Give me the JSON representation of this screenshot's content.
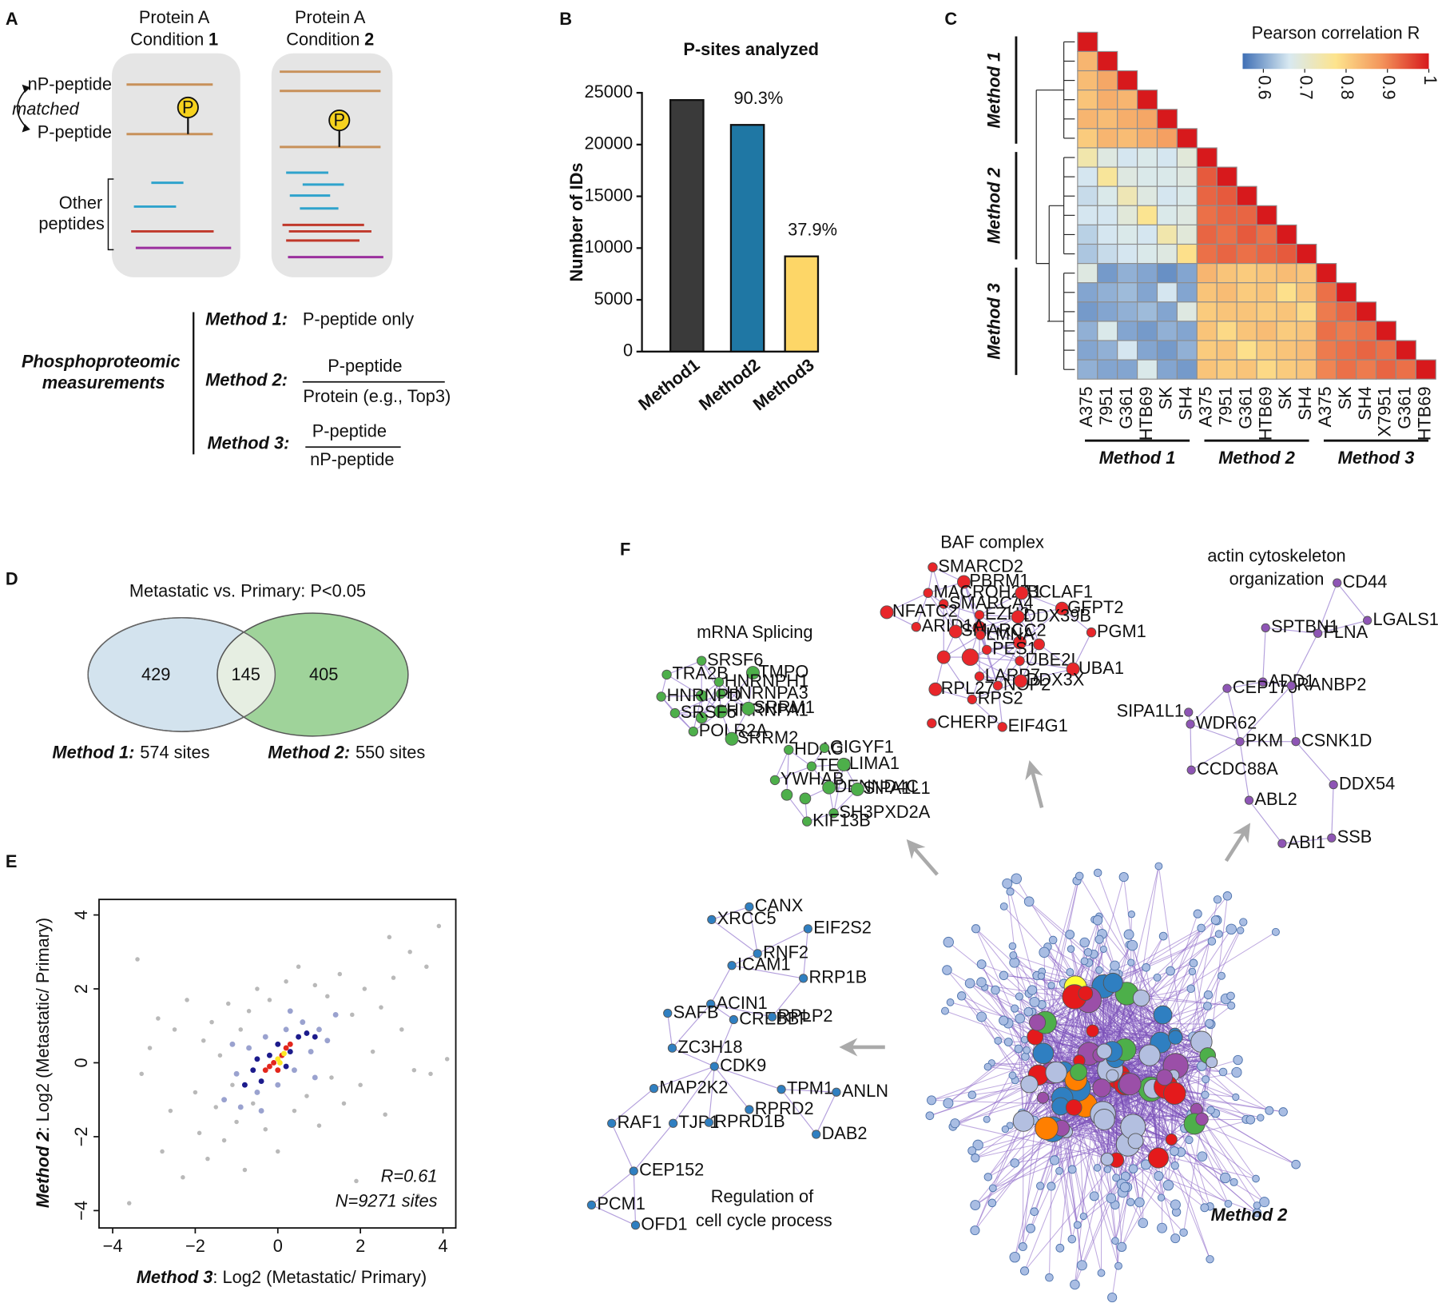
{
  "panel_labels": [
    "A",
    "B",
    "C",
    "D",
    "E",
    "F"
  ],
  "panel_a": {
    "proteins": [
      {
        "name": "Protein A",
        "condition": "Condition",
        "number": "1"
      },
      {
        "name": "Protein A",
        "condition": "Condition",
        "number": "2"
      }
    ],
    "np_peptide": "nP-peptide",
    "matched": "matched",
    "p_peptide": "P-peptide",
    "phospho_marker": "P",
    "other_peptides": [
      "Other",
      "peptides"
    ],
    "measurements_title": [
      "Phosphoproteomic",
      "measurements"
    ],
    "methods": [
      {
        "name": "Method 1:",
        "formula": "P-peptide only"
      },
      {
        "name": "Method 2:",
        "numerator": "P-peptide",
        "denominator": "Protein (e.g., Top3)"
      },
      {
        "name": "Method 3:",
        "numerator": "P-peptide",
        "denominator": "nP-peptide"
      }
    ]
  },
  "chart_data": [
    {
      "type": "bar",
      "title": "P-sites analyzed",
      "y_label": "Number of IDs",
      "categories": [
        "Method1",
        "Method2",
        "Method3"
      ],
      "values": [
        24300,
        21900,
        9200
      ],
      "bar_annotations": [
        null,
        "90.3%",
        "37.9%"
      ],
      "colors": [
        "#3a3a3a",
        "#1f77a4",
        "#fdd667"
      ],
      "ylim": [
        0,
        25000
      ],
      "yticks": [
        0,
        5000,
        10000,
        15000,
        20000,
        25000
      ]
    },
    {
      "type": "heatmap",
      "colorbar_title": "Pearson correlation R",
      "labels": [
        "A375",
        "7951",
        "G361",
        "HTB69",
        "SK",
        "SH4",
        "A375",
        "7951",
        "G361",
        "HTB69",
        "SK",
        "SH4",
        "A375",
        "SK",
        "SH4",
        "X7951",
        "G361",
        "HTB69"
      ],
      "group_labels": [
        "Method 1",
        "Method 2",
        "Method 3"
      ],
      "colorscale": [
        "#3f6fb5",
        "#d8e9f1",
        "#fde48d",
        "#f3935a",
        "#d7191c"
      ],
      "clim": [
        0.55,
        1
      ],
      "cticks": [
        0.6,
        0.7,
        0.8,
        0.9,
        1
      ],
      "matrix": [
        [
          1
        ],
        [
          0.84,
          1
        ],
        [
          0.83,
          0.86,
          1
        ],
        [
          0.82,
          0.85,
          0.84,
          1
        ],
        [
          0.84,
          0.83,
          0.85,
          0.86,
          1
        ],
        [
          0.81,
          0.84,
          0.83,
          0.85,
          0.87,
          1
        ],
        [
          0.74,
          0.68,
          0.66,
          0.67,
          0.66,
          0.69,
          1
        ],
        [
          0.66,
          0.76,
          0.68,
          0.67,
          0.67,
          0.68,
          0.94,
          1
        ],
        [
          0.65,
          0.67,
          0.73,
          0.68,
          0.66,
          0.67,
          0.93,
          0.94,
          1
        ],
        [
          0.66,
          0.66,
          0.69,
          0.77,
          0.67,
          0.68,
          0.92,
          0.93,
          0.93,
          1
        ],
        [
          0.64,
          0.66,
          0.67,
          0.66,
          0.74,
          0.69,
          0.93,
          0.92,
          0.94,
          0.92,
          1
        ],
        [
          0.63,
          0.65,
          0.66,
          0.67,
          0.68,
          0.78,
          0.92,
          0.93,
          0.92,
          0.93,
          0.94,
          1
        ],
        [
          0.68,
          0.59,
          0.61,
          0.6,
          0.58,
          0.6,
          0.84,
          0.82,
          0.81,
          0.82,
          0.83,
          0.82,
          1
        ],
        [
          0.6,
          0.61,
          0.62,
          0.6,
          0.66,
          0.6,
          0.82,
          0.83,
          0.81,
          0.82,
          0.78,
          0.82,
          0.92,
          1
        ],
        [
          0.59,
          0.6,
          0.61,
          0.62,
          0.6,
          0.68,
          0.81,
          0.82,
          0.82,
          0.81,
          0.82,
          0.79,
          0.91,
          0.93,
          1
        ],
        [
          0.61,
          0.67,
          0.6,
          0.59,
          0.61,
          0.6,
          0.82,
          0.79,
          0.82,
          0.83,
          0.81,
          0.82,
          0.92,
          0.91,
          0.92,
          1
        ],
        [
          0.6,
          0.61,
          0.66,
          0.6,
          0.59,
          0.61,
          0.81,
          0.82,
          0.78,
          0.81,
          0.82,
          0.83,
          0.91,
          0.92,
          0.93,
          0.92,
          1
        ],
        [
          0.61,
          0.6,
          0.6,
          0.67,
          0.6,
          0.59,
          0.82,
          0.81,
          0.82,
          0.79,
          0.81,
          0.82,
          0.9,
          0.92,
          0.91,
          0.93,
          0.92,
          1
        ]
      ]
    },
    {
      "type": "scatter",
      "x_label_method": "Method 3",
      "x_label": ": Log2 (Metastatic/ Primary)",
      "y_label_method": "Method 2",
      "y_label": ": Log2 (Metastatic/ Primary)",
      "annotations": [
        "R=0.61",
        "N=9271 sites"
      ],
      "xlim": [
        -4.33,
        4.31
      ],
      "ylim": [
        -4.47,
        4.42
      ],
      "xticks": [
        {
          "value": -4,
          "label": "−4"
        },
        {
          "value": -2,
          "label": "−2"
        },
        0,
        2,
        4
      ],
      "yticks": [
        {
          "value": -4,
          "label": "−4"
        },
        {
          "value": -2,
          "label": "−2"
        },
        0,
        2,
        4
      ],
      "series": [
        {
          "color": "#b9b9b9",
          "x": [
            -3.6,
            -3.3,
            -3.1,
            -2.9,
            -2.8,
            -2.6,
            -2.5,
            -2.3,
            -2.2,
            -2.0,
            -1.9,
            -1.8,
            -1.7,
            -1.6,
            -1.5,
            -1.4,
            -1.3,
            -1.2,
            -1.1,
            -1.0,
            -0.9,
            -0.8,
            -0.7,
            -0.6,
            -0.5,
            -0.3,
            -0.2,
            0.0,
            0.2,
            0.4,
            0.5,
            0.7,
            0.9,
            1.0,
            1.2,
            1.3,
            1.5,
            1.6,
            1.8,
            2.0,
            2.1,
            2.3,
            2.5,
            2.6,
            2.8,
            3.0,
            3.2,
            3.3,
            3.6,
            3.9,
            4.1,
            3.4,
            1.9,
            -3.4,
            2.7,
            3.7
          ],
          "y": [
            -3.8,
            -0.3,
            0.4,
            1.2,
            -2.4,
            -1.3,
            0.9,
            -3.1,
            1.7,
            -0.8,
            -1.9,
            0.6,
            -2.6,
            1.1,
            -1.2,
            0.2,
            -2.1,
            1.6,
            -0.6,
            -1.6,
            0.9,
            -2.9,
            1.4,
            -1.1,
            2.0,
            -1.8,
            1.7,
            -2.4,
            2.2,
            -1.3,
            2.6,
            -0.9,
            2.1,
            -1.7,
            1.8,
            -0.4,
            2.4,
            -1.1,
            1.3,
            -0.6,
            2.0,
            0.3,
            1.5,
            -1.4,
            2.3,
            0.9,
            3.0,
            -0.2,
            2.6,
            3.7,
            0.1,
            -3.6,
            -3.2,
            2.8,
            3.4,
            -0.3
          ]
        },
        {
          "color": "#9aa2cf",
          "x": [
            -1.3,
            -1.0,
            -0.9,
            -0.7,
            -0.5,
            -0.3,
            0.0,
            0.2,
            0.4,
            0.6,
            0.8,
            1.0,
            1.2,
            -1.1,
            0.9,
            1.4,
            -0.4,
            0.3
          ],
          "y": [
            -1.0,
            -0.3,
            -1.2,
            0.4,
            -0.8,
            0.7,
            -0.6,
            0.9,
            -0.2,
            1.1,
            0.3,
            0.9,
            0.6,
            0.5,
            -0.4,
            1.3,
            -1.3,
            1.4
          ]
        },
        {
          "color": "#1c1b8c",
          "x": [
            -0.8,
            -0.6,
            -0.4,
            -0.2,
            0.0,
            0.3,
            0.5,
            0.7,
            0.2,
            -0.5,
            0.9
          ],
          "y": [
            -0.6,
            -0.2,
            -0.5,
            0.2,
            0.5,
            0.3,
            0.7,
            0.8,
            -0.1,
            0.1,
            0.7
          ]
        },
        {
          "color": "#e3261c",
          "x": [
            -0.3,
            -0.1,
            0.1,
            0.3,
            0.0,
            0.2,
            -0.2
          ],
          "y": [
            -0.2,
            0.0,
            0.2,
            0.5,
            -0.2,
            0.4,
            -0.1
          ]
        },
        {
          "color": "#fde725",
          "x": [
            0.0,
            0.15,
            0.05
          ],
          "y": [
            0.1,
            0.25,
            0.0
          ]
        }
      ]
    }
  ],
  "panel_d": {
    "title": "Metastatic vs. Primary: P<0.05",
    "counts": [
      "429",
      "145",
      "405"
    ],
    "sets": [
      {
        "method": "Method 1:",
        "sites": "574 sites"
      },
      {
        "method": "Method 2:",
        "sites": "550 sites"
      }
    ]
  },
  "panel_f": {
    "network_label": "Method 2",
    "clusters": [
      {
        "title": [
          "BAF complex"
        ],
        "color": "#e8262a",
        "nodes": [
          "SMARCD2",
          "PBRM1",
          "MACROH2A1",
          "SMARCA4",
          "BCLAF1",
          "GFPT2",
          "NFATC2",
          "EZH2",
          "DDX39B",
          "ARID1A",
          "SMARCC2",
          "LMNA",
          "PGM1",
          "PES1",
          "UBE2I",
          "UBA1",
          "LARP7",
          "NOP2",
          "DDX3X",
          "RPL27",
          "RPS2",
          "CHERP",
          "EIF4G1"
        ]
      },
      {
        "title": [
          "mRNA Splicing"
        ],
        "color": "#4daf4a",
        "nodes": [
          "SRSF6",
          "TMPO",
          "TRA2B",
          "HNRNPH1",
          "HNRNPA3",
          "HNRNPD",
          "HNRNPA1",
          "SRRM1",
          "SRSF5",
          "POLR2A",
          "SRRM2",
          "HDAC",
          "GIGYF1",
          "TES",
          "LIMA1",
          "YWHAB",
          "DENND4C",
          "SIPA1L1",
          "SH3PXD2A",
          "KIF13B"
        ]
      },
      {
        "title": [
          "actin cytoskeleton",
          "organization"
        ],
        "color": "#8e55b5",
        "nodes": [
          "CD44",
          "LGALS1",
          "SPTBN1",
          "FLNA",
          "ADD1",
          "CEP170",
          "RANBP2",
          "SIPA1L1",
          "WDR62",
          "PKM",
          "CSNK1D",
          "CCDC88A",
          "DDX54",
          "ABL2",
          "ABI1",
          "SSB"
        ]
      },
      {
        "title": [
          "Regulation of",
          "cell cycle process"
        ],
        "color": "#2f7fc1",
        "nodes": [
          "CANX",
          "XRCC5",
          "EIF2S2",
          "RNF2",
          "ICAM1",
          "RRP1B",
          "ACIN1",
          "SAFB",
          "CREBBP",
          "RPLP2",
          "ZC3H18",
          "CDK9",
          "MAP2K2",
          "TPM1",
          "ANLN",
          "RPRD2",
          "RAF1",
          "TJP1",
          "RPRD1B",
          "DAB2",
          "CEP152",
          "PCM1",
          "OFD1"
        ]
      }
    ]
  }
}
